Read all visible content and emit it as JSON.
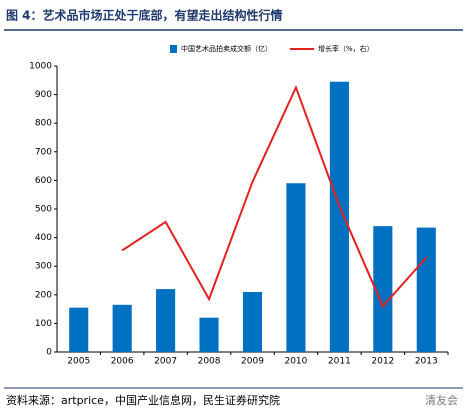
{
  "header": {
    "title": "图 4：艺术品市场正处于底部，有望走出结构性行情"
  },
  "footer": {
    "source": "资料来源：artprice，中国产业信息网，民生证券研究院",
    "watermark": "清友会"
  },
  "chart_data": {
    "type": "combo",
    "categories": [
      "2005",
      "2006",
      "2007",
      "2008",
      "2009",
      "2010",
      "2011",
      "2012",
      "2013"
    ],
    "series": [
      {
        "name": "中国艺术品拍卖成交额（亿）",
        "type": "bar",
        "color": "#0070c0",
        "values": [
          155,
          165,
          220,
          120,
          210,
          590,
          945,
          440,
          435
        ]
      },
      {
        "name": "增长率（%，右）",
        "type": "line",
        "color": "#e3211f",
        "values": [
          null,
          355,
          455,
          185,
          595,
          925,
          510,
          160,
          330
        ]
      }
    ],
    "ylim": [
      0,
      1000
    ],
    "yticks": [
      0,
      100,
      200,
      300,
      400,
      500,
      600,
      700,
      800,
      900,
      1000
    ],
    "grid": false
  }
}
